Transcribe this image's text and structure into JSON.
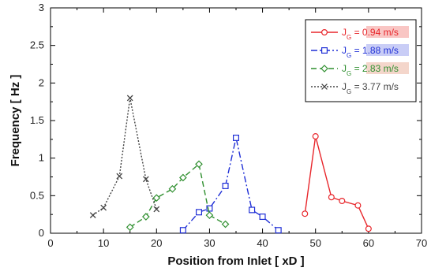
{
  "chart_data": {
    "type": "line",
    "xlabel": "Position from Inlet [ xD ]",
    "ylabel": "Frequency [ Hz ]",
    "xlim": [
      0,
      70
    ],
    "ylim": [
      0,
      3
    ],
    "x_ticks": [
      "0",
      "10",
      "20",
      "30",
      "40",
      "50",
      "60",
      "70"
    ],
    "y_ticks": [
      "0",
      "0.5",
      "1",
      "1.5",
      "2",
      "2.5",
      "3"
    ],
    "grid": false,
    "legend_position": "top-right",
    "series": [
      {
        "name": "J_G = 0.94 m/s",
        "legend_main": "J",
        "legend_sub": "G",
        "legend_value": " = 0.94 m/s",
        "color": "#e8262b",
        "dash": "solid",
        "marker": "circle",
        "points": [
          [
            48,
            0.26
          ],
          [
            50,
            1.29
          ],
          [
            53,
            0.48
          ],
          [
            55,
            0.43
          ],
          [
            58,
            0.37
          ],
          [
            60,
            0.06
          ]
        ]
      },
      {
        "name": "J_G = 1.88 m/s",
        "legend_main": "J",
        "legend_sub": "G",
        "legend_value": " = 1.88 m/s",
        "color": "#1f2fd6",
        "dash": "dashdot",
        "marker": "square",
        "points": [
          [
            25,
            0.04
          ],
          [
            28,
            0.28
          ],
          [
            30,
            0.33
          ],
          [
            33,
            0.63
          ],
          [
            35,
            1.27
          ],
          [
            38,
            0.31
          ],
          [
            40,
            0.22
          ],
          [
            43,
            0.04
          ]
        ]
      },
      {
        "name": "J_G = 2.83 m/s",
        "legend_main": "J",
        "legend_sub": "G",
        "legend_value": " = 2.83 m/s",
        "color": "#2f8f2f",
        "dash": "dashed",
        "marker": "diamond",
        "points": [
          [
            15,
            0.08
          ],
          [
            18,
            0.22
          ],
          [
            20,
            0.47
          ],
          [
            23,
            0.59
          ],
          [
            25,
            0.74
          ],
          [
            28,
            0.92
          ],
          [
            30,
            0.24
          ],
          [
            33,
            0.12
          ]
        ]
      },
      {
        "name": "J_G = 3.77 m/s",
        "legend_main": "J",
        "legend_sub": "G",
        "legend_value": " = 3.77 m/s",
        "color": "#444444",
        "dash": "dotted",
        "marker": "x",
        "points": [
          [
            8,
            0.24
          ],
          [
            10,
            0.34
          ],
          [
            13,
            0.76
          ],
          [
            15,
            1.8
          ],
          [
            18,
            0.72
          ],
          [
            20,
            0.32
          ]
        ]
      }
    ]
  }
}
